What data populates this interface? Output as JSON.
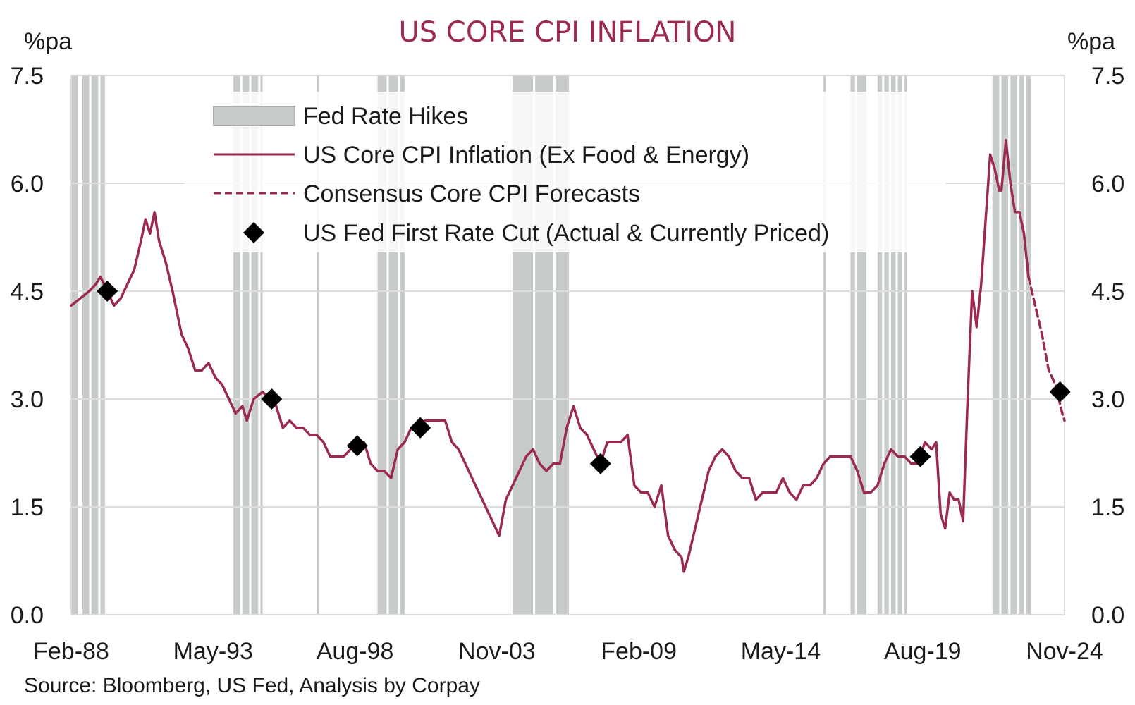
{
  "chart_data": {
    "type": "line",
    "title": "US CORE CPI INFLATION",
    "ylabel_left": "%pa",
    "ylabel_right": "%pa",
    "ylim": [
      0,
      7.5
    ],
    "yticks": [
      "0.0",
      "1.5",
      "3.0",
      "4.5",
      "6.0",
      "7.5"
    ],
    "xlim": [
      "1988-02",
      "2024-11"
    ],
    "xticks": [
      "Feb-88",
      "May-93",
      "Aug-98",
      "Nov-03",
      "Feb-09",
      "May-14",
      "Aug-19",
      "Nov-24"
    ],
    "grid": "horizontal",
    "legend_position": "top-left",
    "source": "Source: Bloomberg, US Fed, Analysis by Corpay",
    "colors": {
      "line": "#9b2a4e",
      "hikes": "#c6cbc9",
      "cut_marker": "#000000",
      "grid": "#dcdcdc",
      "title": "#9b2a4e"
    },
    "legend": [
      {
        "label": "Fed Rate Hikes",
        "kind": "shade"
      },
      {
        "label": "US Core CPI Inflation (Ex Food & Energy)",
        "kind": "line"
      },
      {
        "label": "Consensus Core CPI Forecasts",
        "kind": "dashed"
      },
      {
        "label": "US Fed First Rate Cut (Actual & Currently Priced)",
        "kind": "diamond"
      }
    ],
    "series": [
      {
        "name": "US Core CPI Inflation (Ex Food & Energy)",
        "style": "solid",
        "points": [
          [
            "1988-02",
            4.3
          ],
          [
            "1988-06",
            4.4
          ],
          [
            "1988-10",
            4.5
          ],
          [
            "1989-01",
            4.6
          ],
          [
            "1989-03",
            4.7
          ],
          [
            "1989-06",
            4.5
          ],
          [
            "1989-09",
            4.3
          ],
          [
            "1989-12",
            4.4
          ],
          [
            "1990-03",
            4.6
          ],
          [
            "1990-06",
            4.8
          ],
          [
            "1990-09",
            5.2
          ],
          [
            "1990-11",
            5.5
          ],
          [
            "1991-01",
            5.3
          ],
          [
            "1991-03",
            5.6
          ],
          [
            "1991-05",
            5.2
          ],
          [
            "1991-08",
            4.9
          ],
          [
            "1991-11",
            4.5
          ],
          [
            "1992-01",
            4.2
          ],
          [
            "1992-03",
            3.9
          ],
          [
            "1992-06",
            3.7
          ],
          [
            "1992-09",
            3.4
          ],
          [
            "1992-12",
            3.4
          ],
          [
            "1993-03",
            3.5
          ],
          [
            "1993-06",
            3.3
          ],
          [
            "1993-09",
            3.2
          ],
          [
            "1993-12",
            3.0
          ],
          [
            "1994-03",
            2.8
          ],
          [
            "1994-06",
            2.9
          ],
          [
            "1994-08",
            2.7
          ],
          [
            "1994-11",
            3.0
          ],
          [
            "1995-03",
            3.1
          ],
          [
            "1995-06",
            3.0
          ],
          [
            "1995-09",
            2.9
          ],
          [
            "1995-12",
            2.6
          ],
          [
            "1996-03",
            2.7
          ],
          [
            "1996-06",
            2.6
          ],
          [
            "1996-09",
            2.6
          ],
          [
            "1996-12",
            2.5
          ],
          [
            "1997-03",
            2.5
          ],
          [
            "1997-06",
            2.4
          ],
          [
            "1997-09",
            2.2
          ],
          [
            "1997-12",
            2.2
          ],
          [
            "1998-03",
            2.2
          ],
          [
            "1998-06",
            2.3
          ],
          [
            "1998-09",
            2.4
          ],
          [
            "1998-12",
            2.4
          ],
          [
            "1999-03",
            2.1
          ],
          [
            "1999-06",
            2.0
          ],
          [
            "1999-09",
            2.0
          ],
          [
            "1999-12",
            1.9
          ],
          [
            "2000-03",
            2.3
          ],
          [
            "2000-06",
            2.4
          ],
          [
            "2000-09",
            2.6
          ],
          [
            "2000-12",
            2.6
          ],
          [
            "2001-03",
            2.7
          ],
          [
            "2001-06",
            2.7
          ],
          [
            "2001-09",
            2.7
          ],
          [
            "2001-12",
            2.7
          ],
          [
            "2002-03",
            2.4
          ],
          [
            "2002-06",
            2.3
          ],
          [
            "2002-09",
            2.1
          ],
          [
            "2002-12",
            1.9
          ],
          [
            "2003-03",
            1.7
          ],
          [
            "2003-06",
            1.5
          ],
          [
            "2003-09",
            1.3
          ],
          [
            "2003-12",
            1.1
          ],
          [
            "2004-03",
            1.6
          ],
          [
            "2004-06",
            1.8
          ],
          [
            "2004-09",
            2.0
          ],
          [
            "2004-12",
            2.2
          ],
          [
            "2005-03",
            2.3
          ],
          [
            "2005-06",
            2.1
          ],
          [
            "2005-09",
            2.0
          ],
          [
            "2005-12",
            2.1
          ],
          [
            "2006-03",
            2.1
          ],
          [
            "2006-06",
            2.6
          ],
          [
            "2006-09",
            2.9
          ],
          [
            "2006-12",
            2.6
          ],
          [
            "2007-03",
            2.5
          ],
          [
            "2007-06",
            2.3
          ],
          [
            "2007-09",
            2.1
          ],
          [
            "2007-12",
            2.4
          ],
          [
            "2008-03",
            2.4
          ],
          [
            "2008-06",
            2.4
          ],
          [
            "2008-09",
            2.5
          ],
          [
            "2008-12",
            1.8
          ],
          [
            "2009-03",
            1.7
          ],
          [
            "2009-06",
            1.7
          ],
          [
            "2009-09",
            1.5
          ],
          [
            "2009-12",
            1.8
          ],
          [
            "2010-03",
            1.1
          ],
          [
            "2010-06",
            0.9
          ],
          [
            "2010-09",
            0.8
          ],
          [
            "2010-10",
            0.6
          ],
          [
            "2010-12",
            0.8
          ],
          [
            "2011-03",
            1.2
          ],
          [
            "2011-06",
            1.6
          ],
          [
            "2011-09",
            2.0
          ],
          [
            "2011-12",
            2.2
          ],
          [
            "2012-03",
            2.3
          ],
          [
            "2012-06",
            2.2
          ],
          [
            "2012-09",
            2.0
          ],
          [
            "2012-12",
            1.9
          ],
          [
            "2013-03",
            1.9
          ],
          [
            "2013-06",
            1.6
          ],
          [
            "2013-09",
            1.7
          ],
          [
            "2013-12",
            1.7
          ],
          [
            "2014-03",
            1.7
          ],
          [
            "2014-06",
            1.9
          ],
          [
            "2014-09",
            1.7
          ],
          [
            "2014-12",
            1.6
          ],
          [
            "2015-03",
            1.8
          ],
          [
            "2015-06",
            1.8
          ],
          [
            "2015-09",
            1.9
          ],
          [
            "2015-12",
            2.1
          ],
          [
            "2016-03",
            2.2
          ],
          [
            "2016-06",
            2.2
          ],
          [
            "2016-09",
            2.2
          ],
          [
            "2016-12",
            2.2
          ],
          [
            "2017-03",
            2.0
          ],
          [
            "2017-06",
            1.7
          ],
          [
            "2017-09",
            1.7
          ],
          [
            "2017-12",
            1.8
          ],
          [
            "2018-03",
            2.1
          ],
          [
            "2018-06",
            2.3
          ],
          [
            "2018-09",
            2.2
          ],
          [
            "2018-12",
            2.2
          ],
          [
            "2019-03",
            2.1
          ],
          [
            "2019-06",
            2.1
          ],
          [
            "2019-09",
            2.4
          ],
          [
            "2019-12",
            2.3
          ],
          [
            "2020-02",
            2.4
          ],
          [
            "2020-04",
            1.4
          ],
          [
            "2020-06",
            1.2
          ],
          [
            "2020-08",
            1.7
          ],
          [
            "2020-10",
            1.6
          ],
          [
            "2020-12",
            1.6
          ],
          [
            "2021-02",
            1.3
          ],
          [
            "2021-04",
            3.0
          ],
          [
            "2021-06",
            4.5
          ],
          [
            "2021-08",
            4.0
          ],
          [
            "2021-10",
            4.6
          ],
          [
            "2021-12",
            5.5
          ],
          [
            "2022-02",
            6.4
          ],
          [
            "2022-04",
            6.2
          ],
          [
            "2022-06",
            5.9
          ],
          [
            "2022-07",
            5.9
          ],
          [
            "2022-09",
            6.6
          ],
          [
            "2022-11",
            6.0
          ],
          [
            "2023-01",
            5.6
          ],
          [
            "2023-03",
            5.6
          ],
          [
            "2023-05",
            5.3
          ],
          [
            "2023-07",
            4.7
          ]
        ]
      },
      {
        "name": "Consensus Core CPI Forecasts",
        "style": "dashed",
        "points": [
          [
            "2023-07",
            4.7
          ],
          [
            "2023-10",
            4.3
          ],
          [
            "2024-01",
            3.9
          ],
          [
            "2024-04",
            3.4
          ],
          [
            "2024-07",
            3.2
          ],
          [
            "2024-10",
            2.8
          ],
          [
            "2024-11",
            2.7
          ]
        ]
      }
    ],
    "first_rate_cuts": [
      [
        "1989-06",
        4.5
      ],
      [
        "1995-07",
        3.0
      ],
      [
        "1998-09",
        2.35
      ],
      [
        "2001-01",
        2.6
      ],
      [
        "2007-09",
        2.1
      ],
      [
        "2019-07",
        2.2
      ],
      [
        "2024-09",
        3.1
      ]
    ],
    "fed_rate_hike_periods": [
      [
        "1988-02",
        "1988-05"
      ],
      [
        "1988-07",
        "1988-10"
      ],
      [
        "1988-11",
        "1989-02"
      ],
      [
        "1989-03",
        "1989-05"
      ],
      [
        "1994-02",
        "1994-05"
      ],
      [
        "1994-06",
        "1994-09"
      ],
      [
        "1994-10",
        "1995-01"
      ],
      [
        "1995-02",
        "1995-03"
      ],
      [
        "1997-03",
        "1997-04"
      ],
      [
        "1999-06",
        "1999-10"
      ],
      [
        "1999-11",
        "2000-03"
      ],
      [
        "2000-04",
        "2000-06"
      ],
      [
        "2004-06",
        "2005-03"
      ],
      [
        "2005-04",
        "2005-12"
      ],
      [
        "2006-01",
        "2006-07"
      ],
      [
        "2015-12",
        "2016-01"
      ],
      [
        "2016-12",
        "2017-02"
      ],
      [
        "2017-03",
        "2017-07"
      ],
      [
        "2017-12",
        "2018-02"
      ],
      [
        "2018-03",
        "2018-05"
      ],
      [
        "2018-06",
        "2018-08"
      ],
      [
        "2018-09",
        "2018-11"
      ],
      [
        "2018-12",
        "2019-01"
      ],
      [
        "2022-03",
        "2022-06"
      ],
      [
        "2022-07",
        "2022-10"
      ],
      [
        "2022-11",
        "2023-02"
      ],
      [
        "2023-03",
        "2023-05"
      ],
      [
        "2023-06",
        "2023-08"
      ]
    ]
  }
}
